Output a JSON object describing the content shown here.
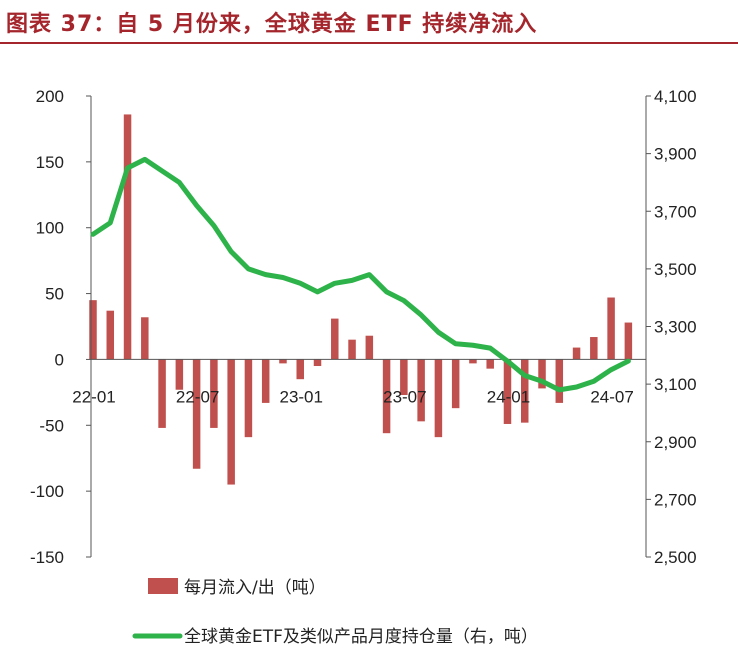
{
  "header": {
    "title": "图表 37：自 5 月份来，全球黄金 ETF 持续净流入"
  },
  "colors": {
    "title": "#a4262c",
    "bar": "#c0504d",
    "line": "#2db34a",
    "axis": "#555555"
  },
  "chart_data": {
    "type": "bar+line",
    "title": "",
    "x_tick_labels": [
      "22-01",
      "22-07",
      "23-01",
      "23-07",
      "24-01",
      "24-07"
    ],
    "x_tick_indices": [
      0,
      6,
      12,
      18,
      24,
      30
    ],
    "months": [
      "22-01",
      "22-02",
      "22-03",
      "22-04",
      "22-05",
      "22-06",
      "22-07",
      "22-08",
      "22-09",
      "22-10",
      "22-11",
      "22-12",
      "23-01",
      "23-02",
      "23-03",
      "23-04",
      "23-05",
      "23-06",
      "23-07",
      "23-08",
      "23-09",
      "23-10",
      "23-11",
      "23-12",
      "24-01",
      "24-02",
      "24-03",
      "24-04",
      "24-05",
      "24-06",
      "24-07",
      "24-08"
    ],
    "left_axis": {
      "min": -150,
      "max": 200,
      "ticks": [
        200,
        150,
        100,
        50,
        0,
        -50,
        -100,
        -150
      ]
    },
    "right_axis": {
      "min": 2500,
      "max": 4100,
      "ticks": [
        4100,
        3900,
        3700,
        3500,
        3300,
        3100,
        2900,
        2700,
        2500
      ],
      "tick_labels": [
        "4,100",
        "3,900",
        "3,700",
        "3,500",
        "3,300",
        "3,100",
        "2,900",
        "2,700",
        "2,500"
      ]
    },
    "series": [
      {
        "name": "每月流入/出（吨）",
        "type": "bar",
        "axis": "left",
        "values": [
          45,
          37,
          186,
          32,
          -52,
          -23,
          -83,
          -52,
          -95,
          -59,
          -33,
          -3,
          -15,
          -5,
          31,
          15,
          18,
          -56,
          -27,
          -47,
          -59,
          -37,
          -3,
          -7,
          -49,
          -48,
          -22,
          -33,
          9,
          17,
          47,
          28
        ]
      },
      {
        "name": "全球黄金ETF及类似产品月度持仓量（右，吨）",
        "type": "line",
        "axis": "right",
        "values": [
          3620,
          3660,
          3850,
          3880,
          3840,
          3800,
          3720,
          3650,
          3560,
          3500,
          3480,
          3470,
          3450,
          3420,
          3450,
          3460,
          3480,
          3420,
          3390,
          3340,
          3280,
          3240,
          3235,
          3225,
          3180,
          3130,
          3110,
          3080,
          3090,
          3110,
          3150,
          3180
        ]
      }
    ],
    "grid": false,
    "legend_position": "bottom"
  }
}
